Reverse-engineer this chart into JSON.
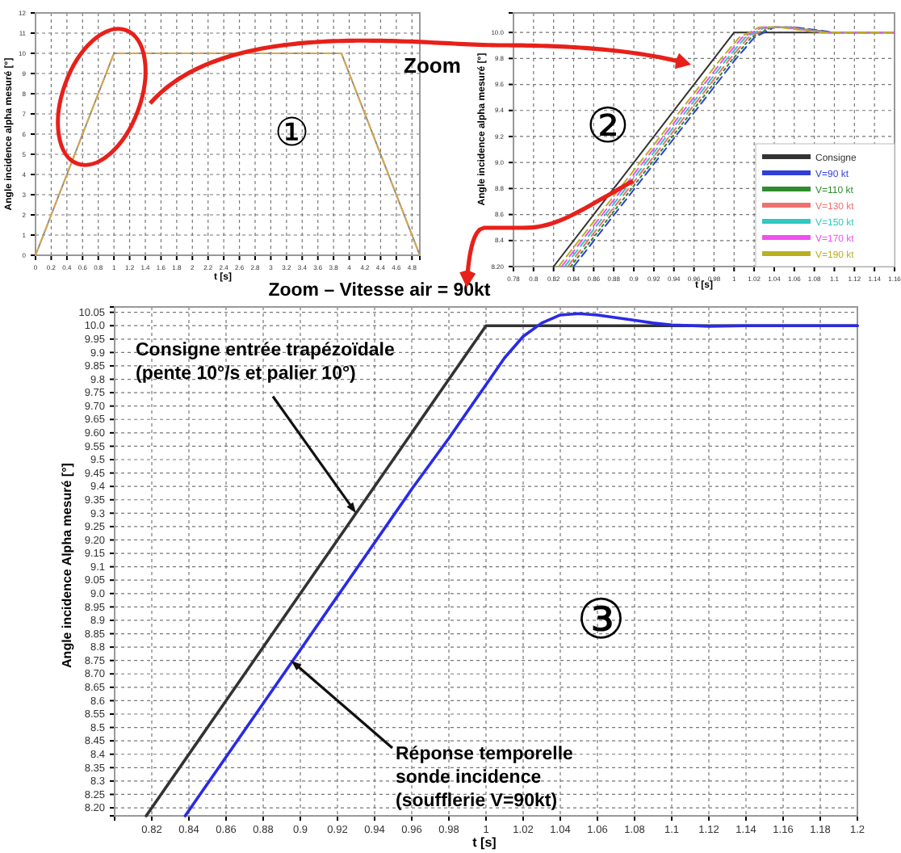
{
  "chart_data": [
    {
      "type": "line",
      "xlabel": "t [s]",
      "ylabel": "Angle incidence alpha mesuré [°]",
      "xlim": [
        0,
        4.9
      ],
      "ylim": [
        0,
        12
      ],
      "xticks": [
        0,
        0.2,
        0.4,
        0.6,
        0.8,
        1,
        1.2,
        1.4,
        1.6,
        1.8,
        2,
        2.2,
        2.4,
        2.6,
        2.8,
        3,
        3.2,
        3.4,
        3.6,
        3.8,
        4,
        4.2,
        4.4,
        4.6,
        4.8
      ],
      "yticks": [
        0,
        1,
        2,
        3,
        4,
        5,
        6,
        7,
        8,
        9,
        10,
        11,
        12
      ],
      "grid": true,
      "annotations": [
        "①"
      ],
      "series": [
        {
          "color": "#8a8a8a",
          "line_style": "solid",
          "x": [
            0,
            1,
            3.9,
            4.9
          ],
          "values": [
            0,
            10,
            10,
            0
          ]
        },
        {
          "color": "#d9a84a",
          "line_style": "dashed",
          "x": [
            0,
            1,
            3.9,
            4.9
          ],
          "values": [
            0,
            10,
            10,
            0
          ]
        }
      ]
    },
    {
      "type": "line",
      "ylabel": "Angle incidence alpha mesuré [°]",
      "xlabel": "t [s]",
      "xlim": [
        0.78,
        1.16
      ],
      "ylim": [
        8.2,
        10.15
      ],
      "xticks": [
        0.78,
        0.8,
        0.82,
        0.84,
        0.86,
        0.88,
        0.9,
        0.92,
        0.94,
        0.96,
        0.98,
        1,
        1.02,
        1.04,
        1.06,
        1.08,
        1.1,
        1.12,
        1.14,
        1.16
      ],
      "yticks": [
        {
          "value": 8.2,
          "label": "8.20"
        },
        8.4,
        8.6,
        8.8,
        {
          "value": 9,
          "label": "9.0"
        },
        9.2,
        9.4,
        9.6,
        9.8,
        {
          "value": 10,
          "label": "10.0"
        }
      ],
      "grid": true,
      "legend": "bottom right",
      "annotations": [
        "Zoom",
        "②"
      ],
      "series": [
        {
          "name": "Consigne",
          "color": "#333333",
          "line_style": "solid",
          "x": [
            0.82,
            1,
            1.16
          ],
          "values": [
            8.2,
            10,
            10
          ]
        },
        {
          "name": "V=90 kt",
          "color": "#2f3fd8",
          "line_style": "dashed",
          "x": [
            0.84,
            0.98,
            1,
            1.02,
            1.04,
            1.06,
            1.08,
            1.1,
            1.16
          ],
          "values": [
            8.2,
            9.58,
            9.78,
            9.96,
            10.04,
            10.04,
            10.02,
            10,
            10
          ]
        },
        {
          "name": "V=110 kt",
          "color": "#2e8b2e",
          "line_style": "dotted",
          "x": [
            0.837,
            0.977,
            0.997,
            1.017,
            1.037,
            1.057,
            1.077,
            1.097,
            1.16
          ],
          "values": [
            8.2,
            9.58,
            9.78,
            9.96,
            10.04,
            10.04,
            10.02,
            10,
            10
          ]
        },
        {
          "name": "V=130 kt",
          "color": "#f07070",
          "line_style": "dashed",
          "x": [
            0.834,
            0.974,
            0.994,
            1.014,
            1.034,
            1.054,
            1.074,
            1.094,
            1.16
          ],
          "values": [
            8.2,
            9.58,
            9.78,
            9.96,
            10.04,
            10.04,
            10.02,
            10,
            10
          ]
        },
        {
          "name": "V=150 kt",
          "color": "#30c8c0",
          "line_style": "dashed",
          "x": [
            0.831,
            0.971,
            0.991,
            1.011,
            1.031,
            1.051,
            1.071,
            1.091,
            1.16
          ],
          "values": [
            8.2,
            9.58,
            9.78,
            9.96,
            10.04,
            10.04,
            10.02,
            10,
            10
          ]
        },
        {
          "name": "V=170 kt",
          "color": "#f050f0",
          "line_style": "dashed",
          "x": [
            0.828,
            0.968,
            0.988,
            1.008,
            1.028,
            1.048,
            1.068,
            1.088,
            1.16
          ],
          "values": [
            8.2,
            9.58,
            9.78,
            9.96,
            10.04,
            10.04,
            10.02,
            10,
            10
          ]
        },
        {
          "name": "V=190 kt",
          "color": "#b8b020",
          "line_style": "dashed",
          "x": [
            0.825,
            0.965,
            0.985,
            1.005,
            1.025,
            1.045,
            1.065,
            1.085,
            1.16
          ],
          "values": [
            8.2,
            9.58,
            9.78,
            9.96,
            10.04,
            10.04,
            10.02,
            10,
            10
          ]
        }
      ]
    },
    {
      "type": "line",
      "title": "Zoom – Vitesse air = 90kt",
      "xlabel": "t [s]",
      "ylabel": "Angle incidence Alpha mesuré [°]",
      "xlim": [
        0.8,
        1.2
      ],
      "ylim": [
        8.17,
        10.07
      ],
      "xticks": [
        0.82,
        0.84,
        0.86,
        0.88,
        0.9,
        0.92,
        0.94,
        0.96,
        0.98,
        1,
        1.02,
        1.04,
        1.06,
        1.08,
        1.1,
        1.12,
        1.14,
        1.16,
        1.18,
        1.2
      ],
      "yticks": [
        {
          "value": 8.2,
          "label": "8.20"
        },
        8.25,
        8.3,
        8.35,
        8.4,
        8.45,
        8.5,
        8.55,
        8.6,
        8.65,
        {
          "value": 8.7,
          "label": "8.70"
        },
        8.75,
        8.8,
        8.85,
        8.9,
        8.95,
        {
          "value": 9,
          "label": "9.0"
        },
        9.05,
        9.1,
        9.15,
        {
          "value": 9.2,
          "label": "9.20"
        },
        9.25,
        9.3,
        9.35,
        9.4,
        9.45,
        9.5,
        9.55,
        {
          "value": 9.6,
          "label": "9.60"
        },
        9.65,
        {
          "value": 9.7,
          "label": "9.70"
        },
        9.75,
        9.8,
        9.85,
        9.9,
        9.95,
        {
          "value": 10,
          "label": "10.0"
        },
        10.05
      ],
      "grid": true,
      "annotations": [
        {
          "text": "Consigne entrée trapézoïdale\n(pente 10°/s et palier 10°)",
          "x": 0.93,
          "y": 9.3
        },
        {
          "text": "Réponse temporelle\nsonde incidence\n(soufflerie V=90kt)",
          "x": 0.895,
          "y": 8.75
        },
        "③"
      ],
      "series": [
        {
          "color": "#333333",
          "line_style": "solid",
          "x": [
            0.817,
            1,
            1.2
          ],
          "values": [
            8.17,
            10,
            10
          ]
        },
        {
          "color": "#2a2ae8",
          "line_style": "solid",
          "x": [
            0.838,
            0.9,
            0.96,
            0.98,
            0.99,
            1,
            1.01,
            1.02,
            1.03,
            1.04,
            1.05,
            1.06,
            1.07,
            1.08,
            1.09,
            1.1,
            1.12,
            1.14,
            1.2
          ],
          "values": [
            8.17,
            8.79,
            9.39,
            9.58,
            9.68,
            9.78,
            9.88,
            9.96,
            10.01,
            10.04,
            10.045,
            10.04,
            10.03,
            10.02,
            10.01,
            10.003,
            9.998,
            10,
            10
          ]
        }
      ]
    }
  ]
}
